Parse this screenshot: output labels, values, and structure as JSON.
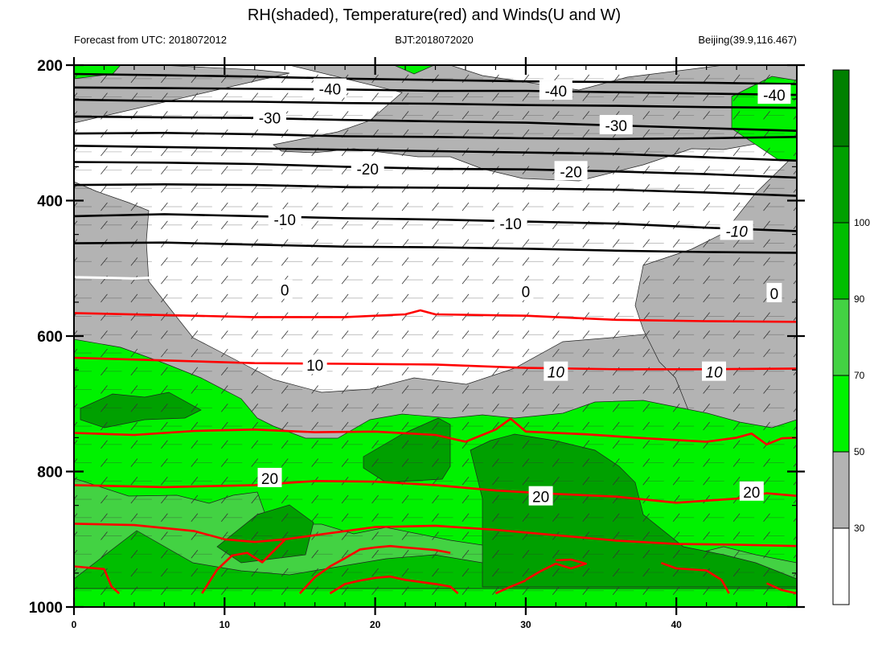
{
  "chart_data": {
    "type": "contour",
    "title": "RH(shaded), Temperature(red) and Winds(U and W)",
    "left_string": "Forecast from UTC: 2018072012",
    "center_string": "BJT:2018072020",
    "right_string": "Beijing(39.9,116.467)",
    "x": {
      "range": [
        0,
        48
      ],
      "ticks": [
        0,
        10,
        20,
        30,
        40
      ],
      "tick_labels": [
        "0",
        "10",
        "20",
        "30",
        "40"
      ]
    },
    "y": {
      "range": [
        200,
        1000
      ],
      "reversed": true,
      "ticks": [
        200,
        400,
        600,
        800,
        1000
      ],
      "tick_labels": [
        "200",
        "400",
        "600",
        "800",
        "1000"
      ]
    },
    "colorbar": {
      "levels": [
        30,
        50,
        70,
        90,
        100
      ],
      "tick_labels": [
        "30",
        "50",
        "70",
        "90",
        "100"
      ],
      "colors": [
        "#ffffff",
        "#b3b3b3",
        "#00f200",
        "#43d243",
        "#00be00",
        "#00a000",
        "#008000"
      ]
    },
    "temperature_contours": [
      {
        "value": -40,
        "label": "-40",
        "color": "#000000",
        "label_positions": [
          [
            17,
            235
          ],
          [
            32,
            238
          ],
          [
            46.5,
            244
          ]
        ]
      },
      {
        "value": -30,
        "label": "-30",
        "color": "#000000",
        "label_positions": [
          [
            13,
            278
          ],
          [
            36,
            289
          ]
        ]
      },
      {
        "value": -20,
        "label": "-20",
        "color": "#000000",
        "label_positions": [
          [
            19.5,
            353
          ],
          [
            33,
            357
          ]
        ]
      },
      {
        "value": -10,
        "label": "-10",
        "color": "#000000",
        "label_positions": [
          [
            14,
            428
          ],
          [
            29,
            434
          ],
          [
            44,
            445
          ]
        ]
      },
      {
        "value": 0,
        "label": "0",
        "color": "#000000",
        "label_positions": [
          [
            14,
            532
          ],
          [
            30,
            534
          ],
          [
            46.5,
            537
          ]
        ]
      },
      {
        "value": 10,
        "label": "10",
        "color": "#ff0000",
        "label_positions": [
          [
            16,
            643
          ],
          [
            32,
            653
          ],
          [
            42.5,
            653
          ]
        ]
      },
      {
        "value": 20,
        "label": "20",
        "color": "#ff0000",
        "label_positions": [
          [
            13,
            810
          ],
          [
            31,
            837
          ],
          [
            45,
            830
          ]
        ]
      }
    ],
    "temperature_lines": [
      {
        "color": "#000000",
        "pts": [
          [
            0,
            213
          ],
          [
            6,
            215
          ],
          [
            12,
            217
          ],
          [
            18,
            220
          ],
          [
            24,
            222
          ],
          [
            30,
            224
          ],
          [
            36,
            225
          ],
          [
            42,
            226
          ],
          [
            48,
            228
          ]
        ]
      },
      {
        "color": "#000000",
        "pts": [
          [
            0,
            233
          ],
          [
            6,
            234
          ],
          [
            12,
            235
          ],
          [
            18,
            236
          ],
          [
            24,
            238
          ],
          [
            30,
            238
          ],
          [
            36,
            240
          ],
          [
            42,
            242
          ],
          [
            48,
            244
          ]
        ]
      },
      {
        "color": "#000000",
        "pts": [
          [
            0,
            251
          ],
          [
            6,
            253
          ],
          [
            12,
            254
          ],
          [
            18,
            256
          ],
          [
            24,
            257
          ],
          [
            30,
            259
          ],
          [
            36,
            260
          ],
          [
            42,
            262
          ],
          [
            48,
            263
          ]
        ]
      },
      {
        "color": "#000000",
        "pts": [
          [
            0,
            276
          ],
          [
            6,
            277
          ],
          [
            12,
            278
          ],
          [
            18,
            281
          ],
          [
            24,
            283
          ],
          [
            30,
            285
          ],
          [
            36,
            289
          ],
          [
            42,
            293
          ],
          [
            48,
            297
          ]
        ]
      },
      {
        "color": "#000000",
        "pts": [
          [
            0,
            301
          ],
          [
            6,
            300
          ],
          [
            12,
            302
          ],
          [
            18,
            305
          ],
          [
            24,
            306
          ],
          [
            30,
            308
          ],
          [
            36,
            309
          ],
          [
            42,
            308
          ],
          [
            48,
            306
          ]
        ]
      },
      {
        "color": "#000000",
        "pts": [
          [
            0,
            319
          ],
          [
            6,
            321
          ],
          [
            12,
            323
          ],
          [
            18,
            325
          ],
          [
            24,
            327
          ],
          [
            30,
            329
          ],
          [
            36,
            331
          ],
          [
            42,
            336
          ],
          [
            48,
            341
          ]
        ]
      },
      {
        "color": "#000000",
        "pts": [
          [
            0,
            343
          ],
          [
            6,
            344
          ],
          [
            12,
            346
          ],
          [
            18,
            350
          ],
          [
            24,
            353
          ],
          [
            30,
            354
          ],
          [
            36,
            357
          ],
          [
            42,
            361
          ],
          [
            48,
            366
          ]
        ]
      },
      {
        "color": "#000000",
        "pts": [
          [
            0,
            377
          ],
          [
            6,
            376
          ],
          [
            12,
            377
          ],
          [
            18,
            380
          ],
          [
            24,
            381
          ],
          [
            30,
            382
          ],
          [
            36,
            384
          ],
          [
            42,
            388
          ],
          [
            48,
            393
          ]
        ]
      },
      {
        "color": "#000000",
        "pts": [
          [
            0,
            423
          ],
          [
            6,
            420
          ],
          [
            12,
            423
          ],
          [
            18,
            426
          ],
          [
            24,
            428
          ],
          [
            30,
            431
          ],
          [
            36,
            434
          ],
          [
            42,
            440
          ],
          [
            48,
            445
          ]
        ]
      },
      {
        "color": "#000000",
        "pts": [
          [
            0,
            463
          ],
          [
            6,
            462
          ],
          [
            12,
            465
          ],
          [
            18,
            468
          ],
          [
            24,
            469
          ],
          [
            30,
            471
          ],
          [
            36,
            474
          ],
          [
            42,
            476
          ],
          [
            48,
            477
          ]
        ]
      },
      {
        "color": "#ffffff",
        "pts": [
          [
            0,
            513
          ],
          [
            2,
            514
          ],
          [
            4,
            515
          ],
          [
            5,
            514
          ]
        ]
      },
      {
        "color": "#ff0000",
        "pts": [
          [
            0,
            566
          ],
          [
            6,
            569
          ],
          [
            12,
            572
          ],
          [
            18,
            572
          ],
          [
            22,
            568
          ],
          [
            23,
            562
          ],
          [
            24,
            568
          ],
          [
            30,
            570
          ],
          [
            36,
            576
          ],
          [
            42,
            578
          ],
          [
            48,
            579
          ]
        ]
      },
      {
        "color": "#ff0000",
        "pts": [
          [
            0,
            632
          ],
          [
            6,
            636
          ],
          [
            12,
            640
          ],
          [
            18,
            641
          ],
          [
            24,
            642
          ],
          [
            30,
            647
          ],
          [
            36,
            649
          ],
          [
            42,
            649
          ],
          [
            48,
            648
          ]
        ]
      },
      {
        "color": "#ff0000",
        "pts": [
          [
            0,
            743
          ],
          [
            4,
            746
          ],
          [
            8,
            740
          ],
          [
            12,
            738
          ],
          [
            16,
            742
          ],
          [
            20,
            741
          ],
          [
            24,
            746
          ],
          [
            26,
            756
          ],
          [
            28,
            738
          ],
          [
            29,
            722
          ],
          [
            30,
            741
          ],
          [
            34,
            745
          ],
          [
            38,
            751
          ],
          [
            42,
            756
          ],
          [
            44,
            750
          ],
          [
            45,
            744
          ],
          [
            46,
            760
          ],
          [
            47,
            751
          ],
          [
            48,
            750
          ]
        ]
      },
      {
        "color": "#ff0000",
        "pts": [
          [
            0,
            820
          ],
          [
            6,
            823
          ],
          [
            12,
            820
          ],
          [
            16,
            814
          ],
          [
            20,
            815
          ],
          [
            24,
            820
          ],
          [
            28,
            828
          ],
          [
            32,
            833
          ],
          [
            36,
            837
          ],
          [
            40,
            846
          ],
          [
            44,
            840
          ],
          [
            46,
            832
          ],
          [
            48,
            836
          ]
        ]
      },
      {
        "color": "#ff0000",
        "pts": [
          [
            0,
            877
          ],
          [
            4,
            879
          ],
          [
            8,
            888
          ],
          [
            10,
            900
          ],
          [
            12,
            904
          ],
          [
            14,
            900
          ],
          [
            16,
            894
          ],
          [
            20,
            882
          ],
          [
            24,
            880
          ],
          [
            28,
            886
          ],
          [
            32,
            894
          ],
          [
            36,
            902
          ],
          [
            40,
            907
          ],
          [
            44,
            908
          ],
          [
            48,
            910
          ]
        ]
      },
      {
        "color": "#ff0000",
        "pts": [
          [
            0,
            940
          ],
          [
            2,
            944
          ],
          [
            2.5,
            970
          ],
          [
            3,
            980
          ]
        ]
      },
      {
        "color": "#ff0000",
        "pts": [
          [
            8.5,
            980
          ],
          [
            9.5,
            945
          ],
          [
            10.5,
            924
          ],
          [
            11.5,
            920
          ],
          [
            12.5,
            934
          ],
          [
            14,
            901
          ]
        ]
      },
      {
        "color": "#ff0000",
        "pts": [
          [
            15,
            980
          ],
          [
            16,
            956
          ],
          [
            17,
            940
          ],
          [
            18,
            928
          ],
          [
            19,
            915
          ],
          [
            20,
            912
          ],
          [
            21,
            910
          ],
          [
            22,
            912
          ],
          [
            24,
            916
          ],
          [
            25,
            920
          ]
        ]
      },
      {
        "color": "#ff0000",
        "pts": [
          [
            32,
            931
          ],
          [
            33,
            930
          ],
          [
            34,
            936
          ],
          [
            33,
            943
          ],
          [
            32,
            936
          ],
          [
            31,
            947
          ],
          [
            30,
            960
          ]
        ]
      },
      {
        "color": "#ff0000",
        "pts": [
          [
            28,
            980
          ],
          [
            29,
            970
          ],
          [
            30,
            961
          ]
        ]
      },
      {
        "color": "#ff0000",
        "pts": [
          [
            39,
            935
          ],
          [
            40,
            943
          ],
          [
            42,
            946
          ],
          [
            43,
            960
          ],
          [
            43.5,
            980
          ]
        ]
      },
      {
        "color": "#ff0000",
        "pts": [
          [
            46,
            965
          ],
          [
            47,
            975
          ],
          [
            48,
            980
          ]
        ]
      },
      {
        "color": "#ff0000",
        "pts": [
          [
            17,
            980
          ],
          [
            18,
            966
          ],
          [
            19,
            961
          ],
          [
            20,
            957
          ],
          [
            21,
            955
          ],
          [
            22,
            960
          ],
          [
            24,
            966
          ],
          [
            25,
            970
          ],
          [
            25.5,
            980
          ]
        ]
      }
    ]
  }
}
